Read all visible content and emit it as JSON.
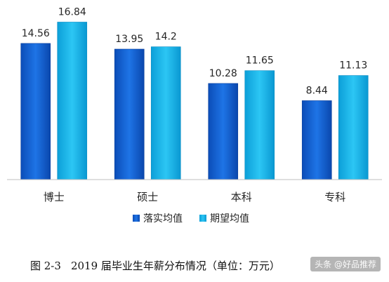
{
  "chart_data": {
    "type": "bar",
    "categories": [
      "博士",
      "硕士",
      "本科",
      "专科"
    ],
    "series": [
      {
        "name": "落实均值",
        "values": [
          14.56,
          13.95,
          10.28,
          8.44
        ],
        "color": "#1565d6"
      },
      {
        "name": "期望均值",
        "values": [
          16.84,
          14.2,
          11.65,
          11.13
        ],
        "color": "#1ab6ec"
      }
    ],
    "ylim": [
      0,
      18
    ],
    "grid": false,
    "legend_position": "bottom",
    "data_labels": [
      "14.56",
      "16.84",
      "13.95",
      "14.2",
      "10.28",
      "11.65",
      "8.44",
      "11.13"
    ]
  },
  "caption": {
    "figure_number": "图 2-3",
    "text": "2019 届毕业生年薪分布情况（单位：万元）"
  },
  "watermark": {
    "text": "头条 @好品推荐"
  }
}
